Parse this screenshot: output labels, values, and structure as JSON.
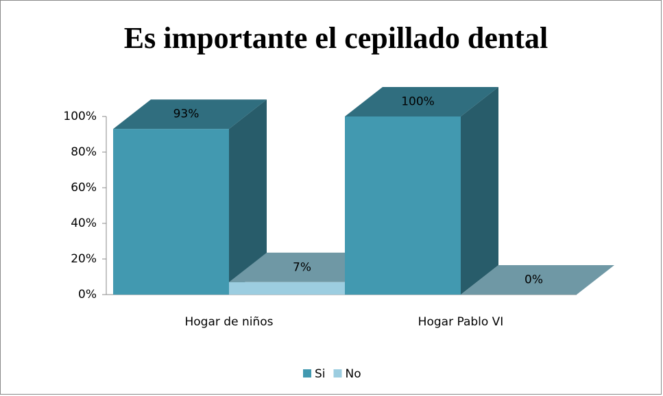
{
  "chart_data": {
    "type": "bar3d",
    "title": "Es importante el cepillado dental",
    "categories": [
      "Hogar de niños",
      "Hogar Pablo VI"
    ],
    "series": [
      {
        "name": "Si",
        "color": "#4299b0",
        "values": [
          93,
          100
        ],
        "value_labels": [
          "93%",
          "100%"
        ]
      },
      {
        "name": "No",
        "color": "#9ccde0",
        "values": [
          7,
          0
        ],
        "value_labels": [
          "7%",
          "0%"
        ]
      }
    ],
    "ylim": [
      0,
      100
    ],
    "yticks": [
      {
        "value": 0,
        "label": "0%"
      },
      {
        "value": 20,
        "label": "20%"
      },
      {
        "value": 40,
        "label": "40%"
      },
      {
        "value": 60,
        "label": "60%"
      },
      {
        "value": 80,
        "label": "80%"
      },
      {
        "value": 100,
        "label": "100%"
      }
    ],
    "legend": "bottom"
  }
}
